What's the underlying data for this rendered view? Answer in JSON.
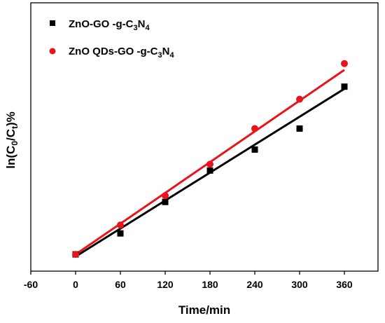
{
  "chart_data": {
    "type": "scatter",
    "xlabel": "Time/min",
    "ylabel": "ln(C0/Ct)%",
    "xlim": [
      -60,
      405
    ],
    "ylim": [
      -0.08,
      1.2
    ],
    "x_ticks": [
      "-60",
      "0",
      "60",
      "120",
      "180",
      "240",
      "300",
      "360"
    ],
    "x_tick_values": [
      -60,
      0,
      60,
      120,
      180,
      240,
      300,
      360
    ],
    "y_tick_labels_shown": false,
    "legend_position": "top-left",
    "series": [
      {
        "name": "ZnO-GO -g-C3N4",
        "legend_parts": [
          "ZnO-GO -g-C",
          "3",
          "N",
          "4"
        ],
        "marker": "square",
        "color": "#000000",
        "x": [
          0,
          60,
          120,
          180,
          240,
          300,
          360
        ],
        "y": [
          0.0,
          0.1,
          0.25,
          0.4,
          0.5,
          0.6,
          0.8
        ],
        "fit": {
          "x": [
            0,
            360
          ],
          "y": [
            -0.01,
            0.79
          ]
        }
      },
      {
        "name": "ZnO QDs-GO -g-C3N4",
        "legend_parts": [
          "ZnO QDs-GO -g-C",
          "3",
          "N",
          "4"
        ],
        "marker": "circle",
        "color": "#e8141b",
        "x": [
          0,
          60,
          120,
          180,
          240,
          300,
          360
        ],
        "y": [
          0.0,
          0.14,
          0.28,
          0.43,
          0.6,
          0.74,
          0.91
        ],
        "fit": {
          "x": [
            0,
            360
          ],
          "y": [
            0.0,
            0.88
          ]
        }
      }
    ]
  }
}
